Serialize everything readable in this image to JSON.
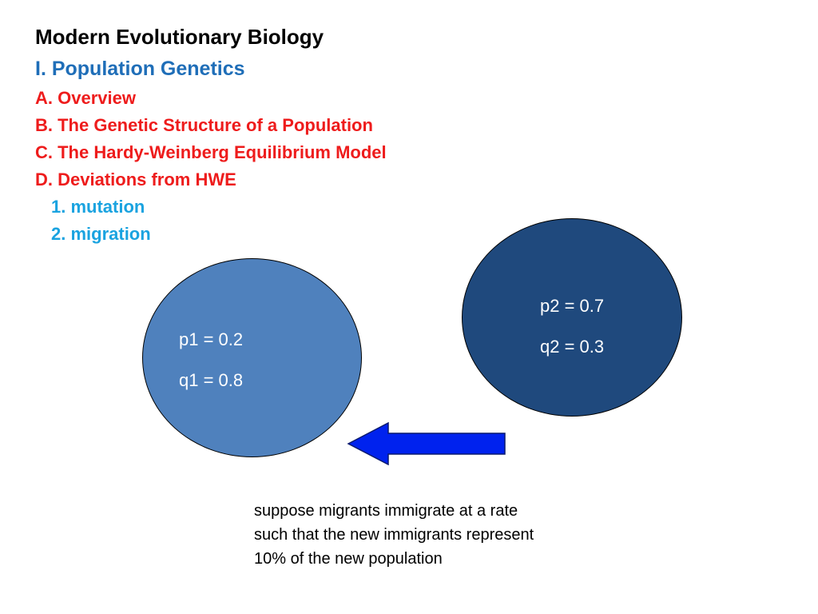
{
  "slide": {
    "title": "Modern Evolutionary Biology",
    "section": "I. Population Genetics",
    "subsections": [
      "A. Overview",
      "B. The Genetic Structure of a Population",
      "C. The Hardy-Weinberg Equilibrium Model",
      "D. Deviations from HWE"
    ],
    "points": [
      "1. mutation",
      "2. migration"
    ]
  },
  "population1": {
    "p": "p1 = 0.2",
    "q": "q1 = 0.8"
  },
  "population2": {
    "p": "p2 = 0.7",
    "q": "q2 = 0.3"
  },
  "note": {
    "lines": [
      "suppose migrants immigrate at a rate",
      "such that the new immigrants represent",
      "10% of the new population"
    ]
  },
  "colors": {
    "title": "#000000",
    "section": "#1f6eb8",
    "subsection": "#ee1c1c",
    "point": "#1aa3e0",
    "population1_fill": "#4f81bd",
    "population2_fill": "#1f497d",
    "arrow_fill": "#0022ee"
  },
  "icons": {
    "arrow": "left-arrow-icon"
  }
}
